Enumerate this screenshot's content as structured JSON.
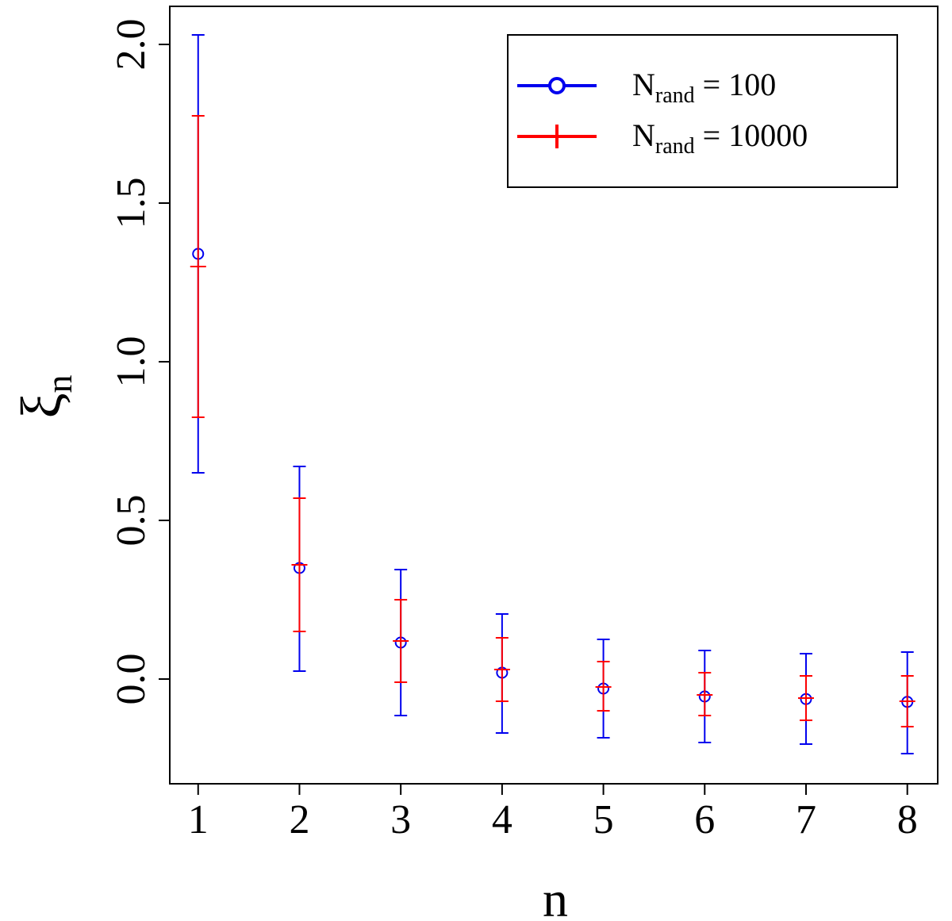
{
  "chart_data": {
    "type": "scatter",
    "title": "",
    "xlabel": "n",
    "ylabel_main": "ξ",
    "ylabel_sub": "n",
    "x": [
      1,
      2,
      3,
      4,
      5,
      6,
      7,
      8
    ],
    "xlim": [
      0.72,
      8.3
    ],
    "ylim": [
      -0.33,
      2.12
    ],
    "x_ticks": [
      1,
      2,
      3,
      4,
      5,
      6,
      7,
      8
    ],
    "x_tick_labels": [
      "1",
      "2",
      "3",
      "4",
      "5",
      "6",
      "7",
      "8"
    ],
    "y_ticks": [
      0.0,
      0.5,
      1.0,
      1.5,
      2.0
    ],
    "y_tick_labels": [
      "0.0",
      "0.5",
      "1.0",
      "1.5",
      "2.0"
    ],
    "grid": false,
    "legend_position": "top-right",
    "series": [
      {
        "name": "N_rand = 100",
        "legend_main": "N",
        "legend_sub": "rand",
        "legend_value": " = 100",
        "marker": "circle",
        "color": "#0000ee",
        "values": [
          1.34,
          0.35,
          0.115,
          0.02,
          -0.03,
          -0.055,
          -0.063,
          -0.072
        ],
        "lower": [
          0.65,
          0.025,
          -0.115,
          -0.17,
          -0.185,
          -0.2,
          -0.205,
          -0.235
        ],
        "upper": [
          2.03,
          0.67,
          0.345,
          0.205,
          0.125,
          0.09,
          0.08,
          0.085
        ]
      },
      {
        "name": "N_rand = 10000",
        "legend_main": "N",
        "legend_sub": "rand",
        "legend_value": " = 10000",
        "marker": "plus",
        "color": "#ff0000",
        "values": [
          1.3,
          0.36,
          0.12,
          0.03,
          -0.025,
          -0.05,
          -0.06,
          -0.07
        ],
        "lower": [
          0.825,
          0.15,
          -0.01,
          -0.07,
          -0.1,
          -0.115,
          -0.13,
          -0.15
        ],
        "upper": [
          1.775,
          0.57,
          0.25,
          0.13,
          0.055,
          0.02,
          0.01,
          0.01
        ]
      }
    ]
  }
}
